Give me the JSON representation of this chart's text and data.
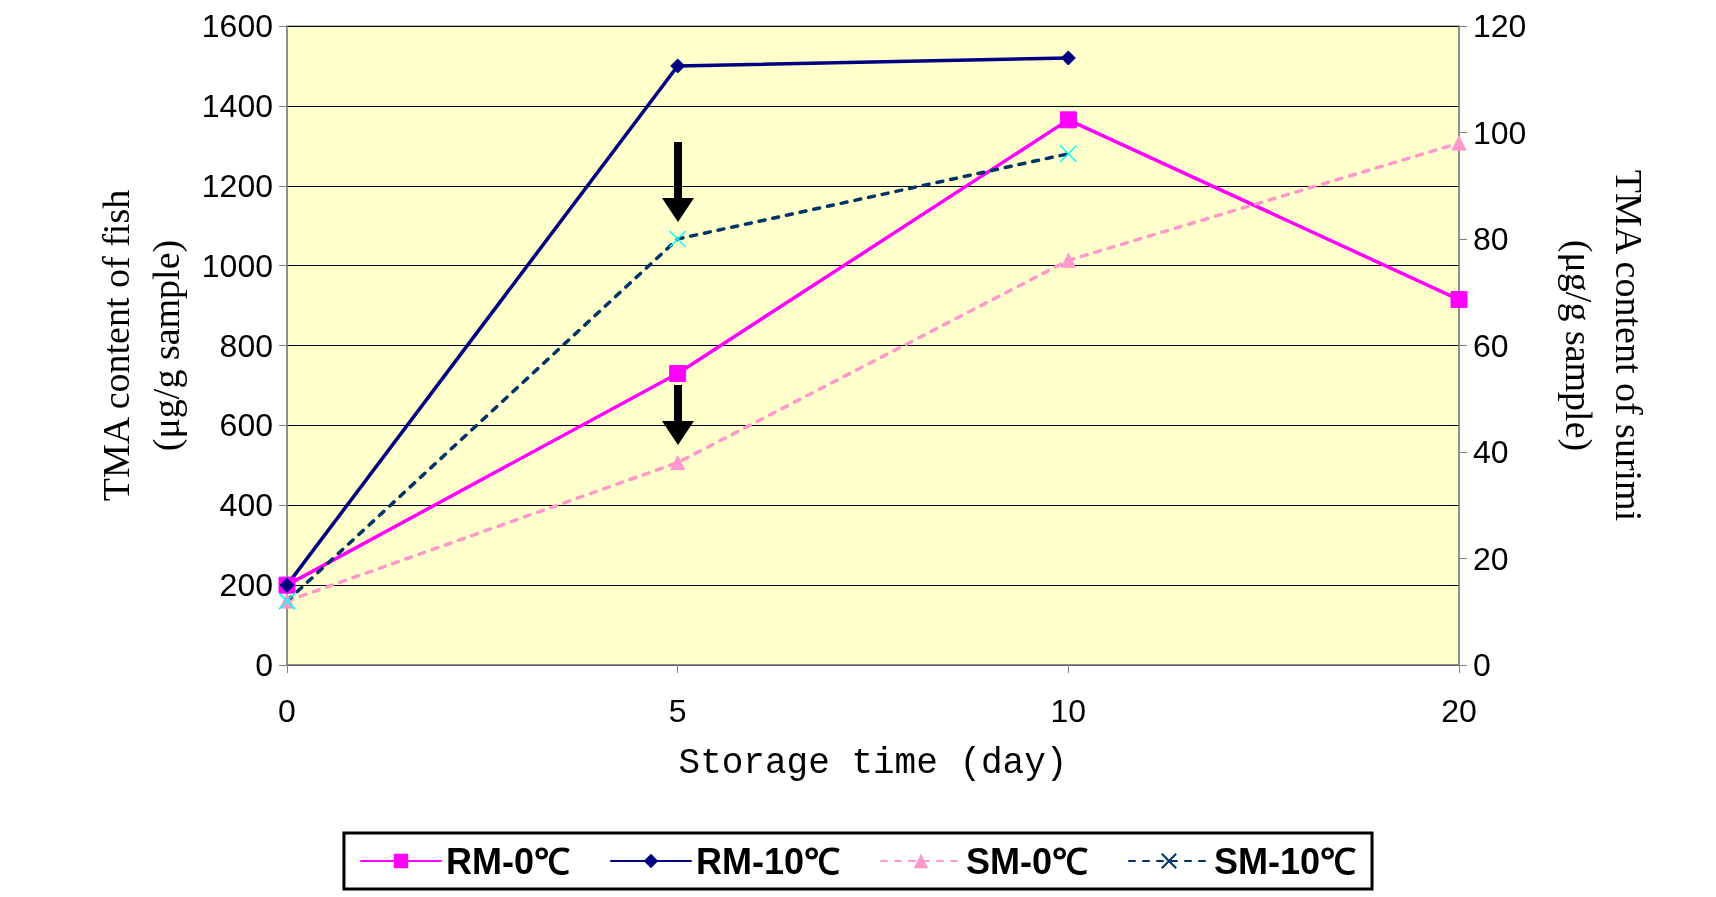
{
  "chart_data": {
    "type": "line",
    "xlabel": "Storage time (day)",
    "ylabel": "TMA content of fish\n(μg/g sample)",
    "y2label": "TMA content of surimi\n(μg/g sample)",
    "categories": [
      "0",
      "5",
      "10",
      "20"
    ],
    "series": [
      {
        "name": "RM-0℃",
        "color": "#ff00ff",
        "marker": "square",
        "line_style": "solid",
        "values": [
          200,
          730,
          1365,
          915
        ]
      },
      {
        "name": "RM-10℃",
        "color": "#000080",
        "marker": "diamond",
        "line_style": "solid",
        "values": [
          200,
          1500,
          1520,
          null
        ]
      },
      {
        "name": "SM-0℃",
        "color": "#ff99cc",
        "marker": "triangle",
        "line_style": "dashed",
        "axis": "y2",
        "values": [
          12,
          38,
          76,
          98
        ]
      },
      {
        "name": "SM-10℃",
        "color": "#003366",
        "colors": [
          "#00ffff",
          "#00ffff",
          "#00ffff",
          "#00ffff"
        ],
        "marker": "cross",
        "line_style": "dashed",
        "axis": "y2",
        "values": [
          12,
          80,
          96,
          null
        ]
      }
    ],
    "ylim": [
      0,
      1600
    ],
    "yticks": [
      0,
      200,
      400,
      600,
      800,
      1000,
      1200,
      1400,
      1600
    ],
    "y2lim": [
      0,
      120
    ],
    "y2ticks": [
      0,
      20,
      40,
      60,
      80,
      100,
      120
    ],
    "grid": "y",
    "legend": "bottom"
  }
}
